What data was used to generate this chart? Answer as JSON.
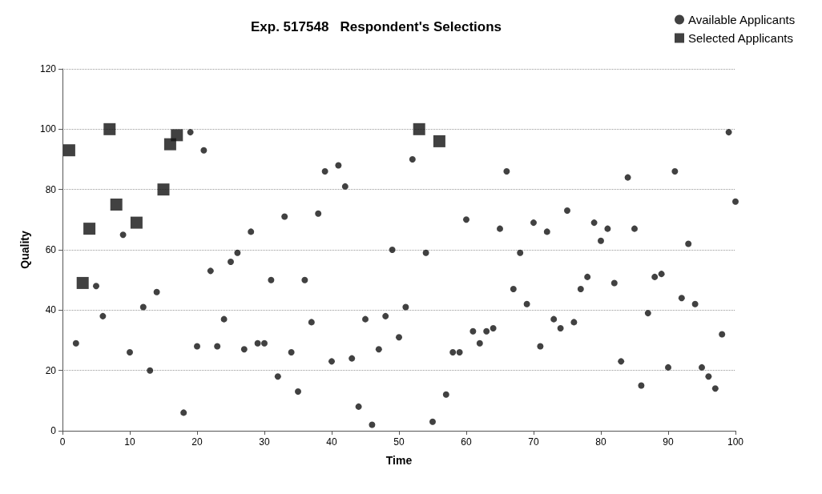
{
  "chart_data": {
    "type": "scatter",
    "title": "Exp. 517548   Respondent's Selections",
    "xlabel": "Time",
    "ylabel": "Quality",
    "xlim": [
      0,
      100
    ],
    "xticks": [
      0,
      10,
      20,
      30,
      40,
      50,
      60,
      70,
      80,
      90,
      100
    ],
    "ylim": [
      0,
      120
    ],
    "yticks": [
      0,
      20,
      40,
      60,
      80,
      100,
      120
    ],
    "grid": "y",
    "legend": "top right",
    "series": [
      {
        "name": "Available Applicants",
        "color": "#111111",
        "marker": "circle",
        "x": [
          2,
          5,
          6,
          9,
          10,
          12,
          13,
          14,
          18,
          19,
          20,
          21,
          22,
          23,
          24,
          25,
          26,
          27,
          28,
          29,
          30,
          31,
          32,
          33,
          34,
          35,
          36,
          37,
          38,
          39,
          40,
          41,
          42,
          43,
          44,
          45,
          46,
          47,
          48,
          49,
          50,
          51,
          52,
          54,
          55,
          57,
          58,
          59,
          60,
          61,
          62,
          63,
          64,
          65,
          66,
          67,
          68,
          69,
          70,
          71,
          72,
          73,
          74,
          75,
          76,
          77,
          78,
          79,
          80,
          81,
          82,
          83,
          84,
          85,
          86,
          87,
          88,
          89,
          90,
          91,
          92,
          93,
          94,
          95,
          96,
          97,
          98,
          99,
          100
        ],
        "values": [
          29,
          48,
          38,
          65,
          26,
          41,
          20,
          46,
          6,
          99,
          28,
          93,
          53,
          28,
          37,
          56,
          59,
          27,
          66,
          29,
          29,
          50,
          18,
          71,
          26,
          13,
          50,
          36,
          72,
          86,
          23,
          88,
          81,
          24,
          8,
          37,
          2,
          27,
          38,
          60,
          31,
          41,
          90,
          59,
          3,
          12,
          26,
          26,
          70,
          33,
          29,
          33,
          34,
          67,
          86,
          47,
          59,
          42,
          69,
          28,
          66,
          37,
          34,
          73,
          36,
          47,
          51,
          69,
          63,
          67,
          49,
          23,
          84,
          67,
          15,
          39,
          51,
          52,
          21,
          86,
          44,
          62,
          42,
          21,
          18,
          14,
          32,
          99,
          76
        ]
      },
      {
        "name": "Selected Applicants",
        "color": "#111111",
        "marker": "square",
        "x": [
          1,
          3,
          4,
          7,
          8,
          11,
          15,
          16,
          17,
          53,
          56
        ],
        "values": [
          93,
          49,
          67,
          100,
          75,
          69,
          80,
          95,
          98,
          100,
          96
        ]
      }
    ]
  }
}
